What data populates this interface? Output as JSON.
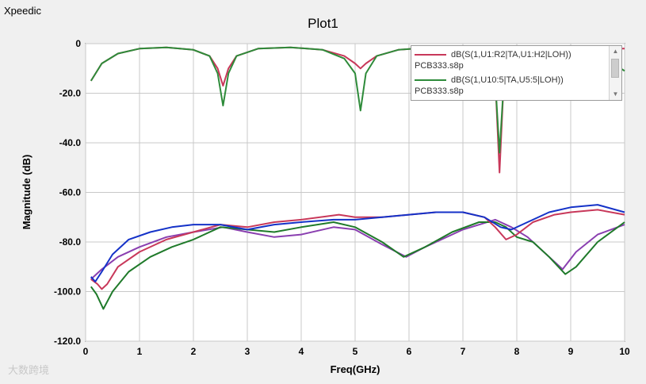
{
  "app": {
    "title": "Xpeedic"
  },
  "chart_data": {
    "type": "line",
    "title": "Plot1",
    "xlabel": "Freq(GHz)",
    "ylabel": "Magnitude (dB)",
    "xlim": [
      0,
      10
    ],
    "ylim": [
      -120,
      0
    ],
    "grid": true,
    "x_ticks": [
      "0",
      "1",
      "2",
      "3",
      "4",
      "5",
      "6",
      "7",
      "8",
      "9",
      "10"
    ],
    "y_ticks": [
      "0",
      "-20.0",
      "-40.0",
      "-60.0",
      "-80.0",
      "-100.0",
      "-120.0"
    ],
    "legend_position": "top-right",
    "legend": [
      {
        "label": "dB(S(1,U1:R2|TA,U1:H2|LOH))",
        "file": "PCB333.s8p",
        "color": "#c8385a"
      },
      {
        "label": "dB(S(1,U10:5|TA,U5:5|LOH))",
        "file": "PCB333.s8p",
        "color": "#2e8b3a"
      }
    ],
    "series": [
      {
        "name": "dB(S(1,U1:R2|TA,U1:H2|LOH))",
        "color": "#c8385a",
        "x": [
          0.1,
          0.3,
          0.6,
          1.0,
          1.5,
          2.0,
          2.3,
          2.45,
          2.55,
          2.65,
          2.8,
          3.2,
          3.8,
          4.4,
          4.8,
          5.0,
          5.1,
          5.2,
          5.4,
          5.8,
          6.4,
          7.0,
          7.4,
          7.6,
          7.68,
          7.76,
          7.9,
          8.2,
          8.6,
          9.0,
          9.5,
          10.0
        ],
        "y": [
          -15,
          -8,
          -4,
          -2,
          -1.5,
          -2.5,
          -5,
          -10,
          -17,
          -10,
          -5,
          -2,
          -1.5,
          -2.5,
          -5,
          -8,
          -10,
          -8,
          -5,
          -2.5,
          -1.5,
          -2,
          -6,
          -14,
          -52,
          -14,
          -5,
          -2.5,
          -1.5,
          -1.5,
          -2,
          -2
        ]
      },
      {
        "name": "dB(S(1,U10:5|TA,U5:5|LOH))",
        "color": "#2e8b3a",
        "x": [
          0.1,
          0.3,
          0.6,
          1.0,
          1.5,
          2.0,
          2.3,
          2.45,
          2.55,
          2.65,
          2.8,
          3.2,
          3.8,
          4.4,
          4.8,
          5.0,
          5.1,
          5.2,
          5.4,
          5.8,
          6.4,
          7.0,
          7.4,
          7.6,
          7.68,
          7.76,
          7.9,
          8.2,
          8.6,
          9.0,
          9.5,
          10.0
        ],
        "y": [
          -15,
          -8,
          -4,
          -2,
          -1.5,
          -2.5,
          -5,
          -12,
          -25,
          -12,
          -5,
          -2,
          -1.5,
          -2.5,
          -6,
          -12,
          -27,
          -12,
          -5,
          -2.5,
          -1.5,
          -2,
          -6,
          -15,
          -44,
          -15,
          -5,
          -2.5,
          -1.5,
          -2,
          -4,
          -11
        ]
      },
      {
        "name": "",
        "color": "#8a3fb0",
        "x": [
          0.1,
          0.3,
          0.6,
          1.0,
          1.5,
          2.0,
          2.55,
          3.0,
          3.5,
          4.0,
          4.6,
          5.0,
          5.5,
          5.95,
          6.3,
          7.0,
          7.6,
          7.9,
          8.2,
          8.6,
          8.85,
          9.1,
          9.5,
          10.0
        ],
        "y": [
          -95,
          -91,
          -86,
          -82,
          -78,
          -76,
          -74,
          -76,
          -78,
          -77,
          -74,
          -75,
          -81,
          -86,
          -82,
          -75,
          -71,
          -74,
          -78,
          -86,
          -91,
          -84,
          -77,
          -73
        ]
      },
      {
        "name": "",
        "color": "#1f7a2a",
        "x": [
          0.1,
          0.2,
          0.33,
          0.5,
          0.8,
          1.2,
          1.6,
          2.0,
          2.5,
          3.0,
          3.5,
          4.0,
          4.6,
          5.0,
          5.5,
          5.9,
          6.3,
          6.8,
          7.3,
          7.6,
          7.8,
          8.0,
          8.3,
          8.6,
          8.9,
          9.1,
          9.5,
          10.0
        ],
        "y": [
          -98,
          -101,
          -107,
          -100,
          -92,
          -86,
          -82,
          -79,
          -74,
          -75,
          -76,
          -74,
          -72,
          -74,
          -80,
          -86,
          -82,
          -76,
          -72,
          -72,
          -74,
          -78,
          -80,
          -86,
          -93,
          -90,
          -80,
          -72
        ]
      },
      {
        "name": "",
        "color": "#c8385a",
        "x": [
          0.1,
          0.22,
          0.3,
          0.4,
          0.6,
          1.0,
          1.5,
          2.0,
          2.5,
          3.0,
          3.5,
          4.0,
          4.7,
          5.0,
          5.5,
          6.0,
          6.5,
          7.0,
          7.4,
          7.6,
          7.8,
          8.0,
          8.3,
          8.7,
          9.0,
          9.5,
          10.0
        ],
        "y": [
          -95,
          -97,
          -99,
          -97,
          -90,
          -84,
          -79,
          -76,
          -73,
          -74,
          -72,
          -71,
          -69,
          -70,
          -70,
          -69,
          -68,
          -68,
          -70,
          -74,
          -79,
          -77,
          -72,
          -69,
          -68,
          -67,
          -69
        ]
      },
      {
        "name": "",
        "color": "#1432c8",
        "x": [
          0.1,
          0.18,
          0.3,
          0.5,
          0.8,
          1.2,
          1.6,
          2.0,
          2.5,
          3.0,
          3.5,
          4.0,
          4.6,
          5.0,
          5.5,
          6.0,
          6.5,
          7.0,
          7.4,
          7.7,
          7.9,
          8.2,
          8.6,
          9.0,
          9.5,
          10.0
        ],
        "y": [
          -94,
          -96,
          -92,
          -85,
          -79,
          -76,
          -74,
          -73,
          -73,
          -75,
          -73,
          -72,
          -71,
          -71,
          -70,
          -69,
          -68,
          -68,
          -70,
          -74,
          -75,
          -72,
          -68,
          -66,
          -65,
          -68
        ]
      }
    ]
  },
  "watermark": "大数跨境"
}
